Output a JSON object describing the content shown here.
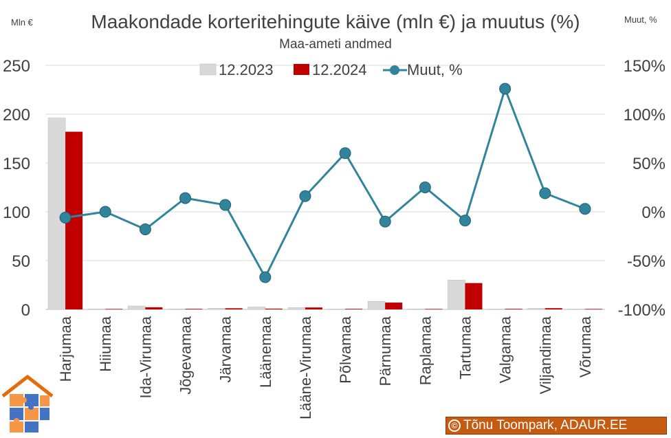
{
  "chart_data": {
    "type": "bar",
    "title": "Maakondade korteritehingute käive (mln €) ja muutus (%)",
    "subtitle": "Maa-ameti andmed",
    "ylabel_left": "Mln €",
    "ylabel_right": "Muut, %",
    "ylim_left": [
      0,
      250
    ],
    "yticks_left": [
      "0",
      "50",
      "100",
      "150",
      "200",
      "250"
    ],
    "ylim_right": [
      -100,
      150
    ],
    "yticks_right": [
      "-100%",
      "-50%",
      "0%",
      "50%",
      "100%",
      "150%"
    ],
    "legend_position": "top",
    "categories": [
      "Harjumaa",
      "Hiiumaa",
      "Ida-Virumaa",
      "Jõgevamaa",
      "Järvamaa",
      "Läänemaa",
      "Lääne-Virumaa",
      "Põlvamaa",
      "Pärnumaa",
      "Raplamaa",
      "Tartumaa",
      "Valgamaa",
      "Viljandimaa",
      "Võrumaa"
    ],
    "series": [
      {
        "name": "12.2023",
        "type": "bar",
        "axis": "left",
        "color": "#d9d9d9",
        "values": [
          196,
          0.5,
          3.5,
          0.5,
          1.2,
          2.5,
          1.8,
          0.4,
          8.3,
          0.5,
          30,
          0.4,
          1.1,
          0.4
        ]
      },
      {
        "name": "12.2024",
        "type": "bar",
        "axis": "left",
        "color": "#c00000",
        "values": [
          182,
          0.5,
          2.2,
          0.6,
          1.2,
          0.8,
          2.0,
          0.6,
          7.0,
          0.5,
          27,
          0.6,
          1.3,
          0.5
        ]
      },
      {
        "name": "Muut, %",
        "type": "line",
        "axis": "right",
        "color": "#31849b",
        "values": [
          -6,
          0,
          -18,
          14,
          7,
          -67,
          16,
          60,
          -10,
          25,
          -9,
          126,
          19,
          3
        ]
      }
    ],
    "grid": true
  },
  "copyright": {
    "text": "Tõnu Toompark, ADAUR.EE",
    "symbol": "©"
  },
  "logo": {
    "colors": {
      "roof": "#e46c0a",
      "blue": "#4472c4",
      "orange": "#f79646"
    }
  }
}
